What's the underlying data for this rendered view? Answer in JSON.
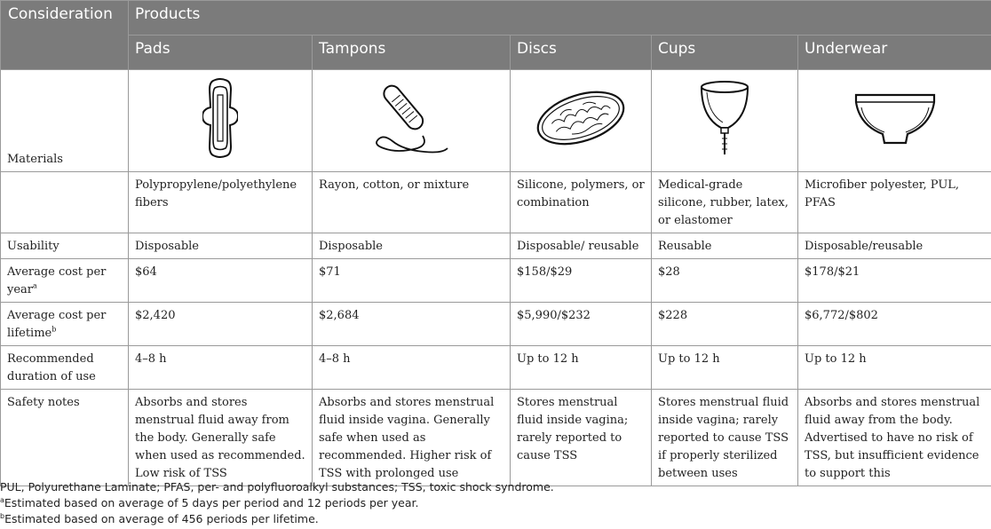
{
  "header": {
    "consideration": "Consideration",
    "products_label": "Products",
    "columns": [
      "Pads",
      "Tampons",
      "Discs",
      "Cups",
      "Underwear"
    ]
  },
  "image_row": {
    "label": "Materials",
    "icons": [
      "pad-icon",
      "tampon-icon",
      "disc-icon",
      "cup-icon",
      "underwear-icon"
    ]
  },
  "materials": [
    "Polypropylene/polyethylene fibers",
    "Rayon, cotton, or mixture",
    "Silicone, polymers, or combination",
    "Medical-grade silicone, rubber, latex, or elastomer",
    "Microfiber polyester, PUL, PFAS"
  ],
  "usability": {
    "label": "Usability",
    "values": [
      "Disposable",
      "Disposable",
      "Disposable/ reusable",
      "Reusable",
      "Disposable/reusable"
    ]
  },
  "cost_year": {
    "label": "Average cost per year",
    "sup": "a",
    "values": [
      "$64",
      "$71",
      "$158/$29",
      "$28",
      "$178/$21"
    ]
  },
  "cost_lifetime": {
    "label": "Average cost per lifetime",
    "sup": "b",
    "values": [
      "$2,420",
      "$2,684",
      "$5,990/$232",
      "$228",
      "$6,772/$802"
    ]
  },
  "duration": {
    "label": "Recommended duration of use",
    "values": [
      "4–8 h",
      "4–8 h",
      "Up to 12 h",
      "Up to 12 h",
      "Up to 12 h"
    ]
  },
  "safety": {
    "label": "Safety notes",
    "values": [
      "Absorbs and stores menstrual fluid away from the body. Generally safe when used as recommended. Low risk of TSS",
      "Absorbs and stores menstrual fluid inside vagina. Generally safe when used as recommended. Higher risk of TSS with prolonged use",
      "Stores menstrual fluid inside vagina; rarely reported to cause TSS",
      "Stores menstrual fluid inside vagina; rarely reported to cause TSS if properly sterilized between uses",
      "Absorbs and stores menstrual fluid away from the body. Advertised to have no risk of TSS, but insufficient evidence to support this"
    ]
  },
  "footnotes": {
    "abbrev": "PUL, Polyurethane Laminate; PFAS, per- and polyfluoroalkyl substances; TSS, toxic shock syndrome.",
    "a_mark": "a",
    "a_text": "Estimated based on average of 5 days per period and 12 periods per year.",
    "b_mark": "b",
    "b_text": "Estimated based on average of 456 periods per lifetime."
  }
}
